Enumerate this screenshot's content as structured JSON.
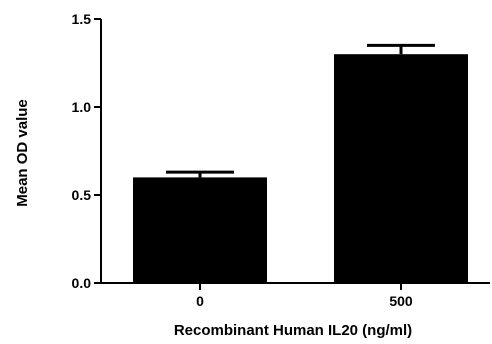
{
  "chart_data": {
    "type": "bar",
    "categories": [
      "0",
      "500"
    ],
    "values": [
      0.6,
      1.3
    ],
    "error": [
      0.03,
      0.05
    ],
    "xlabel": "Recombinant Human IL20 (ng/ml)",
    "ylabel": "Mean OD value",
    "ylim": [
      0,
      1.5
    ],
    "yticks": [
      {
        "value": 0.0,
        "label": "0.0"
      },
      {
        "value": 0.5,
        "label": "0.5"
      },
      {
        "value": 1.0,
        "label": "1.0"
      },
      {
        "value": 1.5,
        "label": "1.5"
      }
    ],
    "bar_color": "#000000",
    "grid": false
  }
}
